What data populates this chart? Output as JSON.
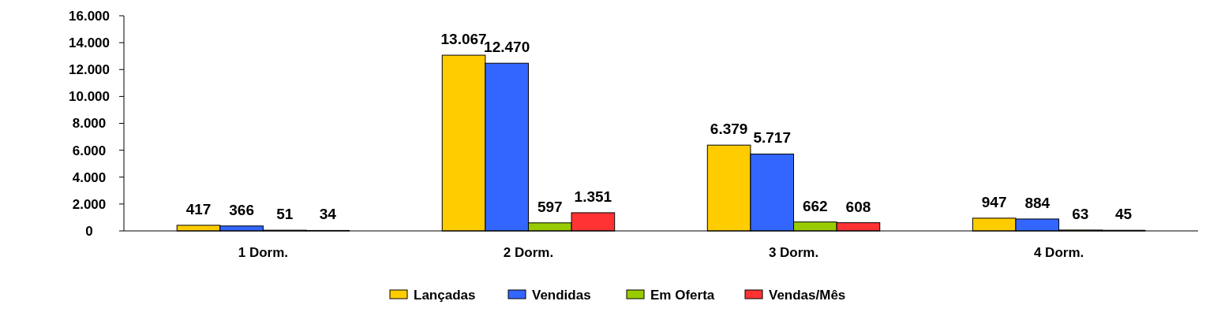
{
  "chart_data": {
    "type": "bar",
    "categories": [
      "1 Dorm.",
      "2 Dorm.",
      "3 Dorm.",
      "4 Dorm."
    ],
    "series": [
      {
        "name": "Lançadas",
        "color": "#ffcc00",
        "values": [
          417,
          13067,
          6379,
          947
        ],
        "value_labels": [
          "417",
          "13.067",
          "6.379",
          "947"
        ]
      },
      {
        "name": "Vendidas",
        "color": "#3366ff",
        "values": [
          366,
          12470,
          5717,
          884
        ],
        "value_labels": [
          "366",
          "12.470",
          "5.717",
          "884"
        ]
      },
      {
        "name": "Em Oferta",
        "color": "#99cc00",
        "values": [
          51,
          597,
          662,
          63
        ],
        "value_labels": [
          "51",
          "597",
          "662",
          "63"
        ]
      },
      {
        "name": "Vendas/Mês",
        "color": "#ff3333",
        "values": [
          34,
          1351,
          608,
          45
        ],
        "value_labels": [
          "34",
          "1.351",
          "608",
          "45"
        ]
      }
    ],
    "ylim": [
      0,
      16000
    ],
    "yticks": [
      0,
      {
        "value": 2000,
        "label": "2.000"
      },
      {
        "value": 4000,
        "label": "4.000"
      },
      {
        "value": 6000,
        "label": "6.000"
      },
      {
        "value": 8000,
        "label": "8.000"
      },
      {
        "value": 10000,
        "label": "10.000"
      },
      {
        "value": 12000,
        "label": "12.000"
      },
      {
        "value": 14000,
        "label": "14.000"
      },
      {
        "value": 16000,
        "label": "16.000"
      }
    ],
    "grid": false,
    "legend": "bottom"
  }
}
